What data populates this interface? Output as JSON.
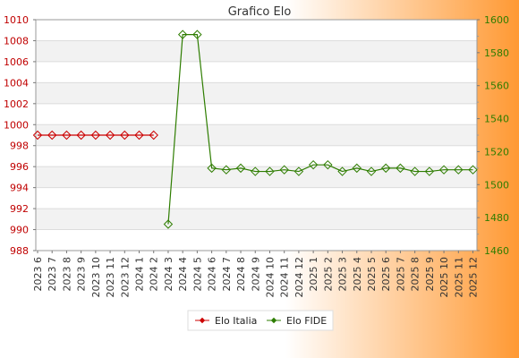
{
  "chart_data": {
    "type": "line",
    "title": "Grafico Elo",
    "categories": [
      "2023 6",
      "2023 7",
      "2023 8",
      "2023 9",
      "2023 10",
      "2023 11",
      "2023 12",
      "2024 1",
      "2024 2",
      "2024 3",
      "2024 4",
      "2024 5",
      "2024 6",
      "2024 7",
      "2024 8",
      "2024 9",
      "2024 10",
      "2024 11",
      "2024 12",
      "2025 1",
      "2025 2",
      "2025 3",
      "2025 4",
      "2025 5",
      "2025 6",
      "2025 7",
      "2025 8",
      "2025 9",
      "2025 10",
      "2025 11",
      "2025 12"
    ],
    "y_left": {
      "ylim": [
        988,
        1010
      ],
      "ticks": [
        988,
        990,
        992,
        994,
        996,
        998,
        1000,
        1002,
        1004,
        1006,
        1008,
        1010
      ]
    },
    "y_right": {
      "ylim": [
        1460,
        1600
      ],
      "ticks": [
        1460,
        1480,
        1500,
        1520,
        1540,
        1560,
        1580,
        1600
      ]
    },
    "series": [
      {
        "name": "Elo Italia",
        "axis": "left",
        "color": "#cc0000",
        "values": [
          999,
          999,
          999,
          999,
          999,
          999,
          999,
          999,
          999,
          null,
          null,
          null,
          null,
          null,
          null,
          null,
          null,
          null,
          null,
          null,
          null,
          null,
          null,
          null,
          null,
          null,
          null,
          null,
          null,
          null,
          null
        ]
      },
      {
        "name": "Elo FIDE",
        "axis": "right",
        "color": "#2e7d00",
        "values": [
          null,
          null,
          null,
          null,
          null,
          null,
          null,
          null,
          null,
          1476,
          1591,
          1591,
          1510,
          1509,
          1510,
          1508,
          1508,
          1509,
          1508,
          1512,
          1512,
          1508,
          1510,
          1508,
          1510,
          1510,
          1508,
          1508,
          1509,
          1509,
          1509
        ]
      }
    ],
    "grid": true,
    "legend_position": "bottom-center"
  },
  "colors": {
    "left_axis": "#c00000",
    "right_axis": "#2e7d00",
    "background_gradient_end": "#ff9933",
    "band_fill": "#f2f2f2"
  }
}
